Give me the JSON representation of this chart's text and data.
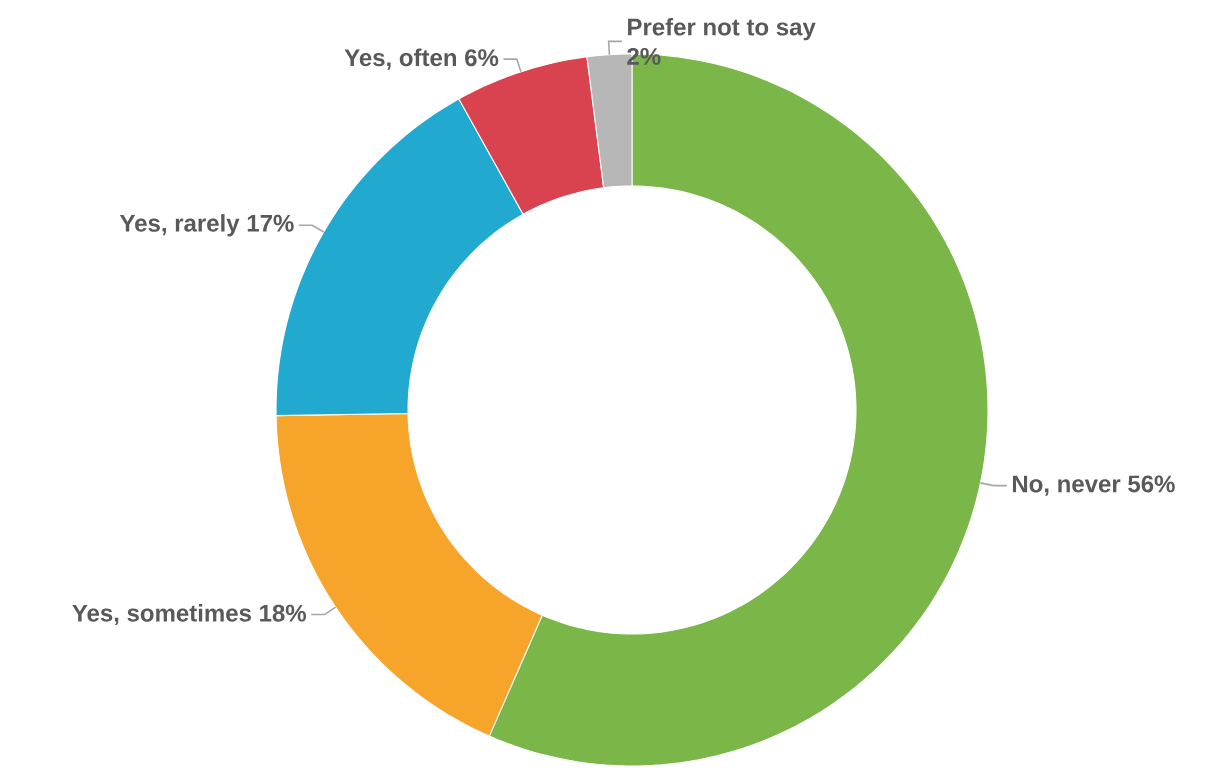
{
  "chart_data": {
    "type": "donut",
    "categories": [
      "No, never",
      "Yes, sometimes",
      "Yes, rarely",
      "Yes, often",
      "Prefer not to say"
    ],
    "values": [
      56,
      18,
      17,
      6,
      2
    ],
    "value_labels": [
      "56%",
      "18%",
      "17%",
      "6%",
      "2%"
    ],
    "colors": [
      "#7ab648",
      "#f7a42a",
      "#22a9d0",
      "#d9434f",
      "#b7b7b7"
    ]
  }
}
